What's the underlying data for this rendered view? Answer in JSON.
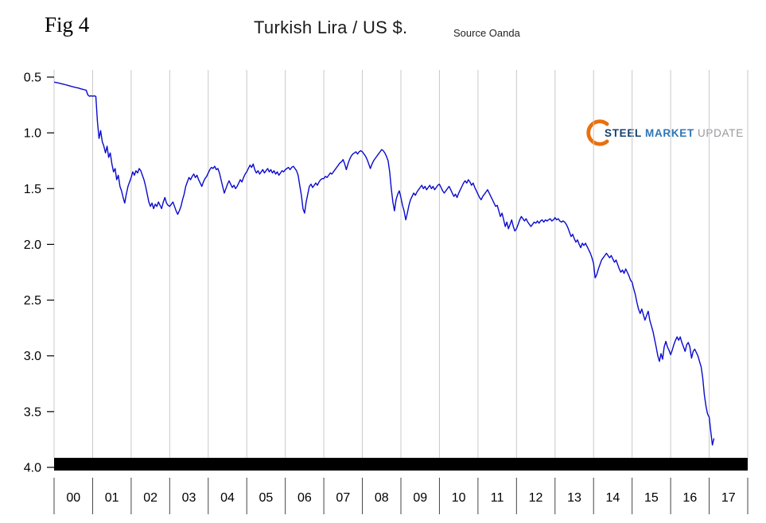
{
  "logo": {
    "part1": "STEEL",
    "part2": "MARKET",
    "part3": "UPDATE",
    "arc_color": "#e8700d",
    "part1_color": "#16406e",
    "part2_color": "#2e75b6",
    "part3_color": "#96989c"
  },
  "chart_data": {
    "type": "line",
    "fig_label": "Fig 4",
    "title": "Turkish Lira / US $.",
    "source": "Source Oanda",
    "legend": "none",
    "grid": "vertical year gridlines only",
    "y_axis_note": "values increase downward (inverted axis)",
    "x_tick_labels": [
      "00",
      "01",
      "02",
      "03",
      "04",
      "05",
      "06",
      "07",
      "08",
      "09",
      "10",
      "11",
      "12",
      "13",
      "14",
      "15",
      "16",
      "17"
    ],
    "x_range": [
      2000,
      2018
    ],
    "y_tick_labels": [
      "0.5",
      "1.0",
      "1.5",
      "2.0",
      "2.5",
      "3.0",
      "3.5",
      "4.0"
    ],
    "y_tick_values": [
      0.5,
      1.0,
      1.5,
      2.0,
      2.5,
      3.0,
      3.5,
      4.0
    ],
    "y_range": [
      0.5,
      4.0
    ],
    "line_color": "#0a0acc",
    "axis_bar_color": "#000000",
    "gridline_color": "#c9c9c9",
    "series": [
      {
        "name": "Turkish Lira per US Dollar",
        "sampling": {
          "start_x": 2000,
          "samples_per_x_unit": 24
        },
        "values": [
          0.545,
          0.548,
          0.55,
          0.554,
          0.558,
          0.561,
          0.565,
          0.568,
          0.572,
          0.576,
          0.58,
          0.584,
          0.588,
          0.591,
          0.595,
          0.598,
          0.602,
          0.606,
          0.61,
          0.614,
          0.618,
          0.66,
          0.672,
          0.668,
          0.672,
          0.668,
          0.673,
          0.9,
          1.05,
          0.98,
          1.08,
          1.12,
          1.18,
          1.12,
          1.22,
          1.18,
          1.28,
          1.35,
          1.32,
          1.42,
          1.38,
          1.48,
          1.52,
          1.58,
          1.63,
          1.55,
          1.48,
          1.44,
          1.4,
          1.35,
          1.38,
          1.34,
          1.36,
          1.32,
          1.34,
          1.38,
          1.42,
          1.48,
          1.55,
          1.62,
          1.66,
          1.63,
          1.68,
          1.64,
          1.66,
          1.62,
          1.65,
          1.68,
          1.62,
          1.58,
          1.63,
          1.65,
          1.66,
          1.64,
          1.62,
          1.66,
          1.7,
          1.73,
          1.7,
          1.66,
          1.6,
          1.55,
          1.48,
          1.44,
          1.4,
          1.42,
          1.39,
          1.37,
          1.4,
          1.38,
          1.42,
          1.45,
          1.48,
          1.44,
          1.41,
          1.39,
          1.36,
          1.33,
          1.31,
          1.32,
          1.3,
          1.33,
          1.32,
          1.36,
          1.42,
          1.48,
          1.54,
          1.5,
          1.46,
          1.43,
          1.46,
          1.49,
          1.47,
          1.5,
          1.48,
          1.45,
          1.42,
          1.44,
          1.4,
          1.37,
          1.35,
          1.32,
          1.29,
          1.31,
          1.28,
          1.33,
          1.36,
          1.34,
          1.37,
          1.35,
          1.33,
          1.36,
          1.34,
          1.32,
          1.35,
          1.33,
          1.36,
          1.34,
          1.37,
          1.35,
          1.38,
          1.36,
          1.34,
          1.35,
          1.33,
          1.32,
          1.31,
          1.33,
          1.31,
          1.3,
          1.32,
          1.34,
          1.38,
          1.47,
          1.56,
          1.68,
          1.72,
          1.62,
          1.55,
          1.48,
          1.46,
          1.49,
          1.47,
          1.45,
          1.47,
          1.44,
          1.42,
          1.41,
          1.41,
          1.39,
          1.4,
          1.38,
          1.36,
          1.37,
          1.35,
          1.33,
          1.31,
          1.29,
          1.27,
          1.26,
          1.24,
          1.28,
          1.33,
          1.28,
          1.24,
          1.21,
          1.19,
          1.18,
          1.17,
          1.19,
          1.17,
          1.16,
          1.17,
          1.19,
          1.21,
          1.24,
          1.28,
          1.32,
          1.28,
          1.25,
          1.23,
          1.21,
          1.19,
          1.17,
          1.15,
          1.16,
          1.18,
          1.21,
          1.25,
          1.35,
          1.5,
          1.62,
          1.7,
          1.6,
          1.55,
          1.52,
          1.58,
          1.65,
          1.7,
          1.78,
          1.72,
          1.65,
          1.6,
          1.57,
          1.54,
          1.56,
          1.53,
          1.51,
          1.49,
          1.47,
          1.5,
          1.48,
          1.51,
          1.49,
          1.47,
          1.5,
          1.48,
          1.51,
          1.49,
          1.47,
          1.46,
          1.49,
          1.52,
          1.54,
          1.52,
          1.5,
          1.48,
          1.51,
          1.54,
          1.57,
          1.55,
          1.58,
          1.54,
          1.51,
          1.48,
          1.45,
          1.43,
          1.45,
          1.42,
          1.44,
          1.47,
          1.45,
          1.49,
          1.52,
          1.55,
          1.58,
          1.6,
          1.57,
          1.55,
          1.53,
          1.51,
          1.54,
          1.57,
          1.6,
          1.63,
          1.66,
          1.65,
          1.7,
          1.75,
          1.72,
          1.78,
          1.84,
          1.8,
          1.86,
          1.82,
          1.78,
          1.84,
          1.88,
          1.86,
          1.82,
          1.78,
          1.75,
          1.77,
          1.79,
          1.77,
          1.8,
          1.82,
          1.84,
          1.82,
          1.8,
          1.81,
          1.79,
          1.81,
          1.79,
          1.78,
          1.8,
          1.78,
          1.79,
          1.78,
          1.77,
          1.79,
          1.78,
          1.76,
          1.78,
          1.77,
          1.79,
          1.8,
          1.79,
          1.8,
          1.82,
          1.85,
          1.89,
          1.93,
          1.91,
          1.95,
          1.98,
          1.96,
          2.0,
          2.03,
          1.99,
          2.01,
          1.99,
          2.02,
          2.05,
          2.08,
          2.12,
          2.17,
          2.3,
          2.27,
          2.22,
          2.18,
          2.14,
          2.12,
          2.1,
          2.08,
          2.1,
          2.12,
          2.1,
          2.13,
          2.16,
          2.14,
          2.18,
          2.22,
          2.25,
          2.23,
          2.26,
          2.22,
          2.25,
          2.28,
          2.32,
          2.34,
          2.4,
          2.45,
          2.52,
          2.58,
          2.62,
          2.58,
          2.63,
          2.68,
          2.64,
          2.6,
          2.68,
          2.73,
          2.78,
          2.85,
          2.92,
          3.0,
          3.05,
          2.98,
          3.03,
          2.92,
          2.87,
          2.92,
          2.95,
          2.99,
          2.95,
          2.9,
          2.86,
          2.83,
          2.86,
          2.83,
          2.88,
          2.92,
          2.96,
          2.9,
          2.88,
          2.92,
          3.02,
          2.96,
          2.94,
          2.97,
          3.0,
          3.05,
          3.1,
          3.2,
          3.35,
          3.45,
          3.52,
          3.55,
          3.68,
          3.8,
          3.74
        ]
      }
    ]
  }
}
